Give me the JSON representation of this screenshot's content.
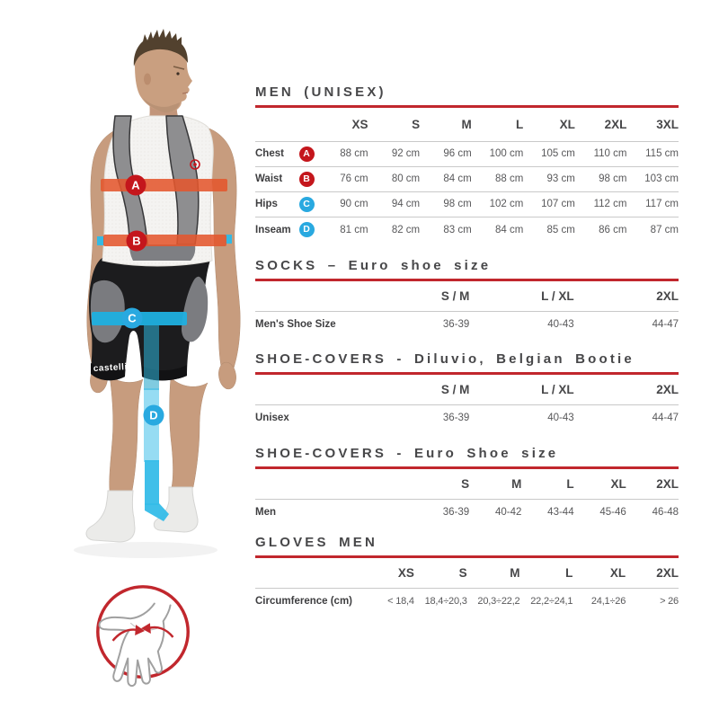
{
  "colors": {
    "accent_red": "#c1272d",
    "badge_red": "#c4161c",
    "badge_blue": "#29a9e0",
    "band_red": "#e4572e",
    "band_blue": "#1fb0e0",
    "heading_text": "#474749",
    "value_text": "#58585a",
    "divider": "#c9c9c9"
  },
  "figure": {
    "description": "Male model in white sleeveless base layer and black bib shorts with measurement bands A (chest), B (waist), C (hips), D (inseam); glove circumference icon below",
    "shorts_brand": "castelli",
    "markers": [
      {
        "label": "A",
        "measure": "Chest",
        "color": "red"
      },
      {
        "label": "B",
        "measure": "Waist",
        "color": "red"
      },
      {
        "label": "C",
        "measure": "Hips",
        "color": "blue"
      },
      {
        "label": "D",
        "measure": "Inseam",
        "color": "blue"
      }
    ]
  },
  "chart_data": [
    {
      "type": "table",
      "title": "MEN (UNISEX)",
      "columns": [
        "XS",
        "S",
        "M",
        "L",
        "XL",
        "2XL",
        "3XL"
      ],
      "rows": [
        {
          "label": "Chest",
          "badge": "A",
          "badge_color": "red",
          "values": [
            "88 cm",
            "92 cm",
            "96 cm",
            "100 cm",
            "105 cm",
            "110 cm",
            "115 cm"
          ]
        },
        {
          "label": "Waist",
          "badge": "B",
          "badge_color": "red",
          "values": [
            "76 cm",
            "80 cm",
            "84 cm",
            "88 cm",
            "93 cm",
            "98 cm",
            "103 cm"
          ]
        },
        {
          "label": "Hips",
          "badge": "C",
          "badge_color": "blue",
          "values": [
            "90 cm",
            "94 cm",
            "98 cm",
            "102 cm",
            "107 cm",
            "112 cm",
            "117 cm"
          ]
        },
        {
          "label": "Inseam",
          "badge": "D",
          "badge_color": "blue",
          "values": [
            "81 cm",
            "82 cm",
            "83 cm",
            "84 cm",
            "85 cm",
            "86 cm",
            "87 cm"
          ]
        }
      ]
    },
    {
      "type": "table",
      "title": "SOCKS – Euro shoe size",
      "columns": [
        "S / M",
        "L / XL",
        "2XL"
      ],
      "rows": [
        {
          "label": "Men's Shoe Size",
          "values": [
            "36-39",
            "40-43",
            "44-47"
          ]
        }
      ]
    },
    {
      "type": "table",
      "title": "SHOE-COVERS - Diluvio, Belgian Bootie",
      "columns": [
        "S / M",
        "L / XL",
        "2XL"
      ],
      "rows": [
        {
          "label": "Unisex",
          "values": [
            "36-39",
            "40-43",
            "44-47"
          ]
        }
      ]
    },
    {
      "type": "table",
      "title": "SHOE-COVERS - Euro Shoe size",
      "columns": [
        "S",
        "M",
        "L",
        "XL",
        "2XL"
      ],
      "rows": [
        {
          "label": "Men",
          "values": [
            "36-39",
            "40-42",
            "43-44",
            "45-46",
            "46-48"
          ]
        }
      ]
    },
    {
      "type": "table",
      "title": "GLOVES MEN",
      "columns": [
        "XS",
        "S",
        "M",
        "L",
        "XL",
        "2XL"
      ],
      "rows": [
        {
          "label": "Circumference (cm)",
          "values": [
            "< 18,4",
            "18,4÷20,3",
            "20,3÷22,2",
            "22,2÷24,1",
            "24,1÷26",
            "> 26"
          ]
        }
      ]
    }
  ]
}
